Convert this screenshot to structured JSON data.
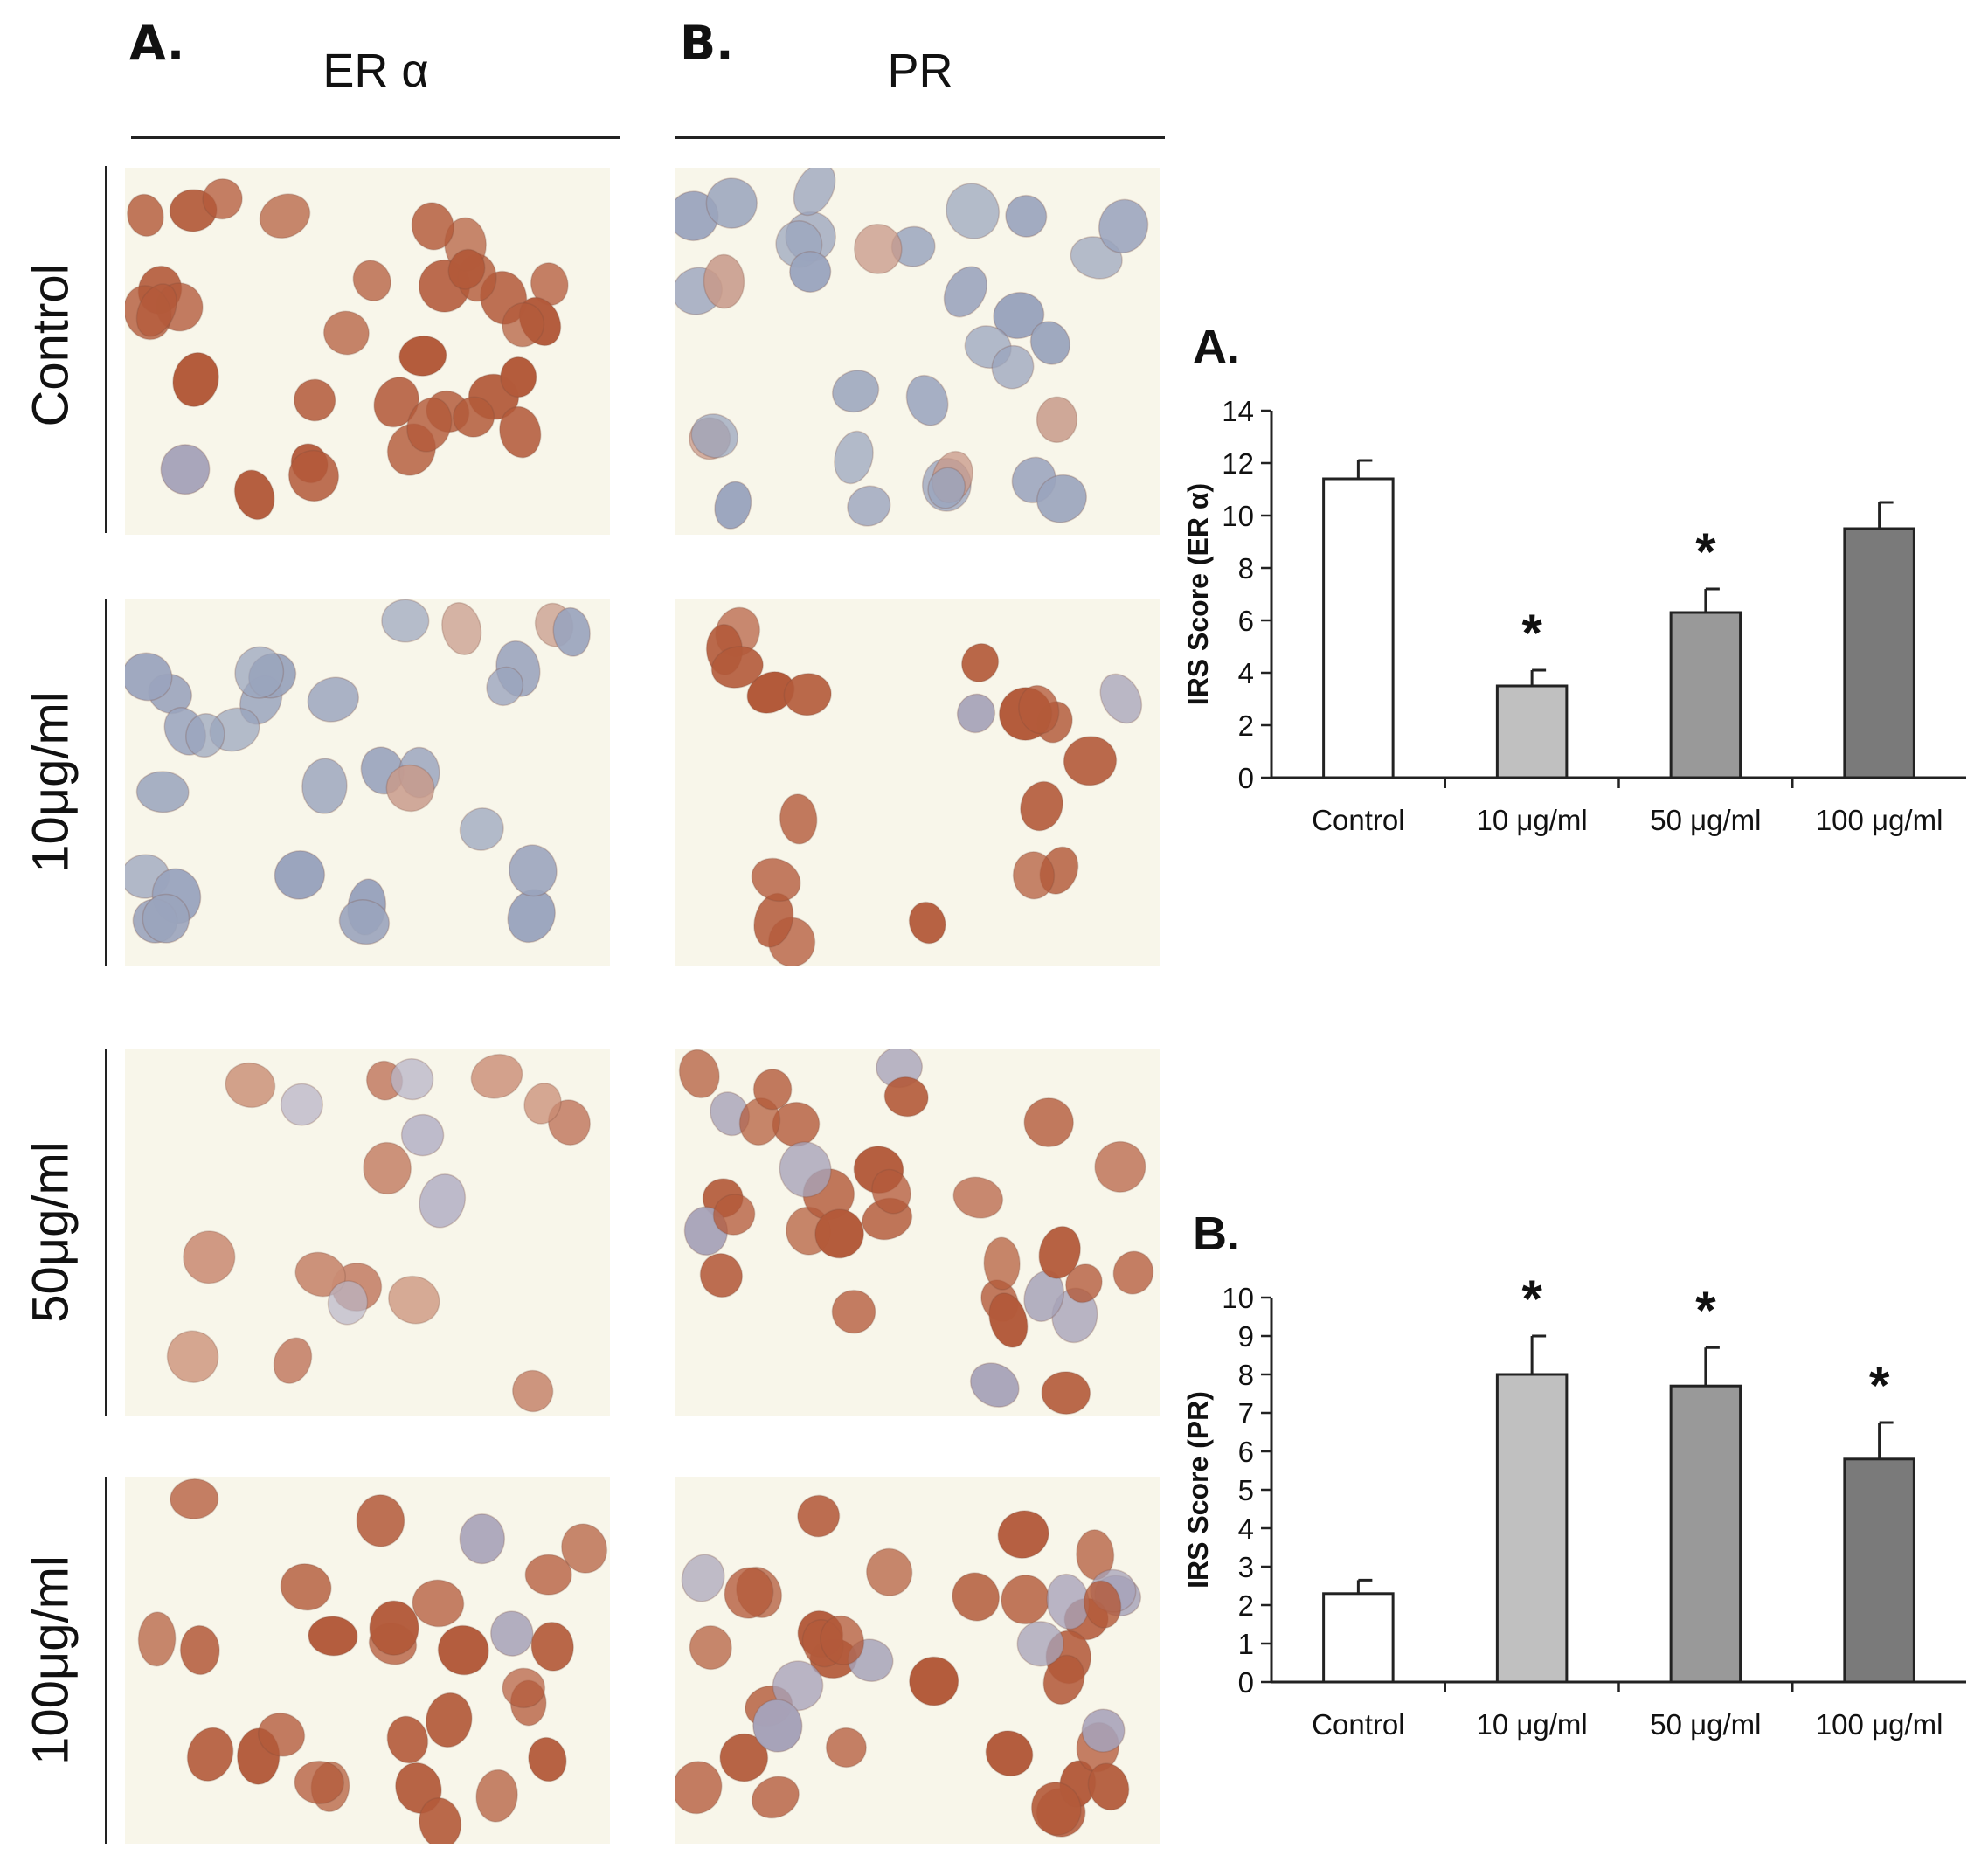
{
  "micrographs": {
    "columns": [
      {
        "letter": "A.",
        "title": "ER α"
      },
      {
        "letter": "B.",
        "title": "PR"
      }
    ],
    "rows": [
      "Control",
      "10μg/ml",
      "50μg/ml",
      "100μg/ml"
    ],
    "colors": {
      "background": "#f8f6ea",
      "brown_nucleus": "#b35a3a",
      "blue_nucleus": "#9aa4bd"
    }
  },
  "chart_data": [
    {
      "type": "bar",
      "panel_letter": "A.",
      "categories": [
        "Control",
        "10 μg/ml",
        "50 μg/ml",
        "100 μg/ml"
      ],
      "values": [
        11.4,
        3.5,
        6.3,
        9.5
      ],
      "errors": [
        0.7,
        0.6,
        0.9,
        1.0
      ],
      "significant": [
        false,
        true,
        true,
        false
      ],
      "significance_marker": "*",
      "ylabel": "IRS Score (ER α)",
      "ylim": [
        0,
        14
      ],
      "yticks": [
        0,
        2,
        4,
        6,
        8,
        10,
        12,
        14
      ],
      "bar_colors": [
        "#ffffff",
        "#c0c0c0",
        "#999999",
        "#7a7a7a"
      ],
      "grid": false
    },
    {
      "type": "bar",
      "panel_letter": "B.",
      "categories": [
        "Control",
        "10 μg/ml",
        "50 μg/ml",
        "100 μg/ml"
      ],
      "values": [
        2.3,
        8.0,
        7.7,
        5.8
      ],
      "errors": [
        0.35,
        1.0,
        1.0,
        0.95
      ],
      "significant": [
        false,
        true,
        true,
        true
      ],
      "significance_marker": "*",
      "ylabel": "IRS Score (PR)",
      "ylim": [
        0,
        10
      ],
      "yticks": [
        0,
        1,
        2,
        3,
        4,
        5,
        6,
        7,
        8,
        9,
        10
      ],
      "bar_colors": [
        "#ffffff",
        "#c0c0c0",
        "#999999",
        "#7a7a7a"
      ],
      "grid": false
    }
  ]
}
